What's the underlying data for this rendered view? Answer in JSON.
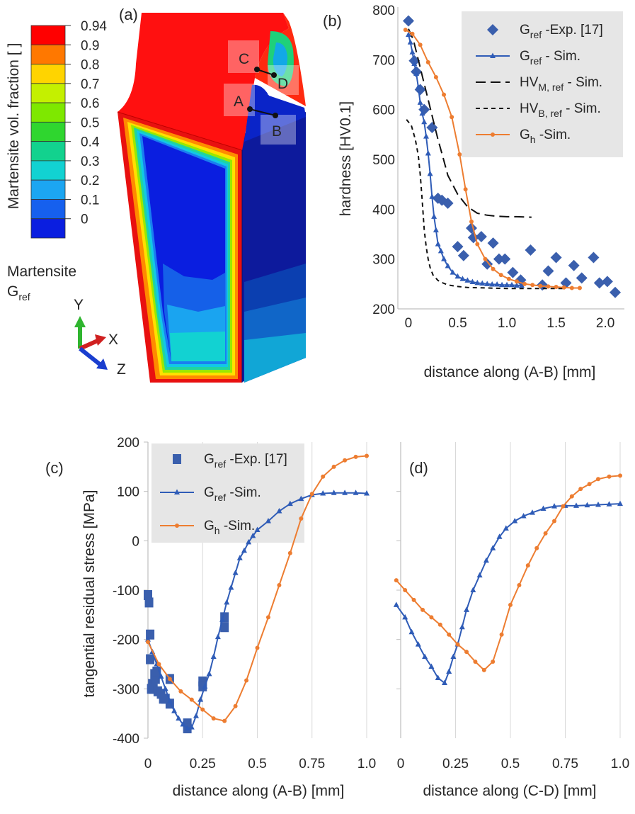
{
  "panel_a": {
    "label": "(a)",
    "colorbar_title": "Martensite vol. fraction  [ ]",
    "colorbar_ticks": [
      "0.94",
      "0.9",
      "0.8",
      "0.7",
      "0.6",
      "0.5",
      "0.4",
      "0.3",
      "0.2",
      "0.1",
      "0"
    ],
    "colorbar_colors": [
      "#ff0000",
      "#ff7800",
      "#ffd400",
      "#c4f000",
      "#7ee800",
      "#2fd62f",
      "#12d28e",
      "#12d2d2",
      "#1ca6f2",
      "#1660ee",
      "#0a1ee0"
    ],
    "model_label_line1": "Martensite",
    "model_label_base": "G",
    "model_label_sub": "ref",
    "points": {
      "A": "A",
      "B": "B",
      "C": "C",
      "D": "D"
    },
    "axes_triad": {
      "y": "Y",
      "x": "X",
      "z": "Z"
    }
  },
  "chart_data": [
    {
      "panel": "(b)",
      "type": "scatter",
      "xlabel": "distance along (A-B)  [mm]",
      "ylabel": "hardness  [HV0.1]",
      "xlim": [
        -0.05,
        2.15
      ],
      "ylim": [
        200,
        800
      ],
      "x_ticks": [
        "0",
        "0.5",
        "1.0",
        "1.5",
        "2.0"
      ],
      "y_ticks": [
        "200",
        "300",
        "400",
        "500",
        "600",
        "700",
        "800"
      ],
      "series": [
        {
          "name": "G_ref -Exp. [17]",
          "marker": "diamond",
          "color": "#3a5fad",
          "x": [
            0,
            0.06,
            0.08,
            0.12,
            0.16,
            0.24,
            0.3,
            0.34,
            0.4,
            0.5,
            0.56,
            0.64,
            0.66,
            0.74,
            0.8,
            0.86,
            0.92,
            0.98,
            1.06,
            1.14,
            1.24,
            1.36,
            1.42,
            1.5,
            1.6,
            1.68,
            1.76,
            1.88,
            1.94,
            2.02,
            2.1
          ],
          "y": [
            778,
            698,
            676,
            640,
            600,
            564,
            422,
            418,
            412,
            325,
            307,
            362,
            343,
            345,
            290,
            332,
            300,
            300,
            273,
            258,
            318,
            248,
            276,
            303,
            252,
            287,
            262,
            303,
            252,
            255,
            233
          ]
        },
        {
          "name": "G_ref - Sim.",
          "marker": "triangle",
          "color": "#2f5cb7",
          "x": [
            0,
            0.02,
            0.04,
            0.06,
            0.08,
            0.1,
            0.12,
            0.14,
            0.16,
            0.18,
            0.2,
            0.22,
            0.24,
            0.26,
            0.28,
            0.3,
            0.33,
            0.36,
            0.4,
            0.45,
            0.5,
            0.55,
            0.6,
            0.65,
            0.7,
            0.75,
            0.8,
            0.85,
            0.9,
            0.95,
            1.0,
            1.05,
            1.1,
            1.15
          ],
          "y": [
            750,
            735,
            715,
            692,
            672,
            645,
            614,
            592,
            575,
            546,
            512,
            471,
            425,
            385,
            358,
            330,
            316,
            300,
            286,
            273,
            265,
            260,
            257,
            254,
            252,
            251,
            250,
            249,
            249,
            248,
            248,
            248,
            247,
            247
          ]
        },
        {
          "name": "HV_M, ref - Sim.",
          "line": "long-dash",
          "color": "#111111",
          "x": [
            0,
            0.05,
            0.1,
            0.15,
            0.2,
            0.25,
            0.3,
            0.35,
            0.4,
            0.5,
            0.6,
            0.7,
            0.8,
            0.9,
            1.0,
            1.1,
            1.25
          ],
          "y": [
            762,
            740,
            700,
            660,
            620,
            580,
            540,
            505,
            468,
            430,
            405,
            392,
            388,
            386,
            385,
            385,
            384
          ]
        },
        {
          "name": "HV_B, ref - Sim.",
          "line": "short-dash",
          "color": "#111111",
          "x": [
            -0.02,
            0.03,
            0.07,
            0.1,
            0.12,
            0.14,
            0.16,
            0.18,
            0.2,
            0.22,
            0.25,
            0.3,
            0.35,
            0.4,
            0.5,
            0.6,
            0.8,
            1.0,
            1.2,
            1.4,
            1.6
          ],
          "y": [
            580,
            568,
            540,
            508,
            470,
            418,
            360,
            325,
            300,
            283,
            268,
            257,
            252,
            248,
            245,
            243,
            242,
            241,
            241,
            241,
            241
          ]
        },
        {
          "name": "G_h -Sim.",
          "marker": "circle",
          "color": "#ed7d31",
          "x": [
            -0.03,
            0.04,
            0.12,
            0.2,
            0.28,
            0.36,
            0.44,
            0.52,
            0.58,
            0.64,
            0.7,
            0.78,
            0.86,
            0.94,
            1.02,
            1.1,
            1.18,
            1.26,
            1.34,
            1.42,
            1.5,
            1.58,
            1.66,
            1.74
          ],
          "y": [
            760,
            752,
            730,
            695,
            665,
            630,
            585,
            510,
            440,
            375,
            330,
            300,
            280,
            268,
            260,
            255,
            250,
            248,
            246,
            245,
            244,
            243,
            242,
            242
          ]
        }
      ],
      "legend": [
        {
          "base": "G",
          "sub": "ref",
          "rest": " -Exp. [17]"
        },
        {
          "base": "G",
          "sub": "ref",
          "rest": " - Sim."
        },
        {
          "base": "HV",
          "sub": "M, ref",
          "rest": " - Sim."
        },
        {
          "base": "HV",
          "sub": "B, ref",
          "rest": " - Sim."
        },
        {
          "base": "G",
          "sub": "h",
          "rest": " -Sim."
        }
      ],
      "legend_position": "top-right",
      "grid": "vertical"
    },
    {
      "panel": "(c)",
      "type": "scatter",
      "xlabel": "distance along (A-B)  [mm]",
      "ylabel": "tangential residual stress [MPa]",
      "xlim": [
        0,
        1.0
      ],
      "ylim": [
        -400,
        200
      ],
      "x_ticks": [
        "0",
        "0.25",
        "0.5",
        "0.75",
        "1.0"
      ],
      "y_ticks": [
        "-400",
        "-300",
        "-200",
        "-100",
        "0",
        "100",
        "200"
      ],
      "series": [
        {
          "name": "G_ref -Exp. [17]",
          "marker": "square",
          "color": "#3a5fad",
          "x": [
            0,
            0.005,
            0.01,
            0.01,
            0.015,
            0.02,
            0.025,
            0.03,
            0.035,
            0.04,
            0.045,
            0.06,
            0.07,
            0.08,
            0.1,
            0.1,
            0.18,
            0.18,
            0.25,
            0.25,
            0.35,
            0.35
          ],
          "y": [
            -110,
            -125,
            -190,
            -240,
            -300,
            -290,
            -300,
            -270,
            -280,
            -265,
            -305,
            -310,
            -320,
            -320,
            -280,
            -330,
            -370,
            -380,
            -285,
            -295,
            -155,
            -175
          ]
        },
        {
          "name": "G_ref -Sim.",
          "marker": "triangle",
          "color": "#2f5cb7",
          "x": [
            0,
            0.02,
            0.04,
            0.06,
            0.08,
            0.1,
            0.12,
            0.14,
            0.16,
            0.18,
            0.2,
            0.22,
            0.24,
            0.26,
            0.28,
            0.3,
            0.32,
            0.34,
            0.36,
            0.38,
            0.4,
            0.42,
            0.44,
            0.46,
            0.48,
            0.5,
            0.55,
            0.6,
            0.65,
            0.7,
            0.75,
            0.8,
            0.85,
            0.9,
            0.95,
            1.0
          ],
          "y": [
            -200,
            -225,
            -250,
            -275,
            -300,
            -325,
            -345,
            -360,
            -372,
            -380,
            -378,
            -355,
            -322,
            -295,
            -270,
            -235,
            -195,
            -160,
            -125,
            -95,
            -65,
            -35,
            -20,
            -3,
            10,
            22,
            40,
            60,
            75,
            85,
            93,
            96,
            97,
            97,
            97,
            96
          ]
        },
        {
          "name": "G_h -Sim.",
          "marker": "circle",
          "color": "#ed7d31",
          "x": [
            0,
            0.05,
            0.1,
            0.15,
            0.2,
            0.25,
            0.3,
            0.35,
            0.4,
            0.45,
            0.5,
            0.55,
            0.6,
            0.65,
            0.7,
            0.75,
            0.8,
            0.85,
            0.9,
            0.95,
            1.0
          ],
          "y": [
            -205,
            -250,
            -280,
            -305,
            -322,
            -342,
            -360,
            -365,
            -335,
            -283,
            -217,
            -155,
            -90,
            -25,
            45,
            95,
            130,
            150,
            163,
            170,
            172
          ]
        }
      ],
      "legend": [
        {
          "base": "G",
          "sub": "ref",
          "rest": " -Exp. [17]"
        },
        {
          "base": "G",
          "sub": "ref",
          "rest": " -Sim."
        },
        {
          "base": "G",
          "sub": "h",
          "rest": " -Sim."
        }
      ],
      "legend_position": "top-left",
      "grid": "vertical"
    },
    {
      "panel": "(d)",
      "type": "line",
      "xlabel": "distance along (C-D)  [mm]",
      "ylabel": "",
      "xlim": [
        0,
        1.0
      ],
      "ylim": [
        -400,
        200
      ],
      "x_ticks": [
        "0",
        "0.25",
        "0.5",
        "0.75",
        "1.0"
      ],
      "series": [
        {
          "name": "G_ref -Sim.",
          "marker": "triangle",
          "color": "#2f5cb7",
          "x": [
            -0.02,
            0.02,
            0.05,
            0.08,
            0.11,
            0.14,
            0.17,
            0.2,
            0.22,
            0.24,
            0.26,
            0.28,
            0.3,
            0.33,
            0.36,
            0.39,
            0.42,
            0.45,
            0.48,
            0.52,
            0.56,
            0.6,
            0.65,
            0.7,
            0.75,
            0.8,
            0.85,
            0.9,
            0.95,
            1.0
          ],
          "y": [
            -130,
            -155,
            -185,
            -210,
            -235,
            -255,
            -278,
            -288,
            -265,
            -235,
            -210,
            -175,
            -140,
            -100,
            -70,
            -40,
            -15,
            8,
            25,
            40,
            50,
            57,
            65,
            70,
            71,
            71,
            72,
            73,
            74,
            75
          ]
        },
        {
          "name": "G_h -Sim.",
          "marker": "circle",
          "color": "#ed7d31",
          "x": [
            -0.02,
            0.02,
            0.06,
            0.1,
            0.14,
            0.18,
            0.22,
            0.26,
            0.3,
            0.34,
            0.38,
            0.42,
            0.46,
            0.5,
            0.54,
            0.58,
            0.62,
            0.66,
            0.7,
            0.74,
            0.78,
            0.82,
            0.86,
            0.9,
            0.95,
            1.0
          ],
          "y": [
            -80,
            -100,
            -120,
            -140,
            -155,
            -170,
            -190,
            -210,
            -225,
            -245,
            -262,
            -245,
            -190,
            -130,
            -90,
            -50,
            -15,
            15,
            40,
            70,
            90,
            105,
            115,
            125,
            130,
            132
          ]
        }
      ],
      "grid": "vertical"
    }
  ]
}
